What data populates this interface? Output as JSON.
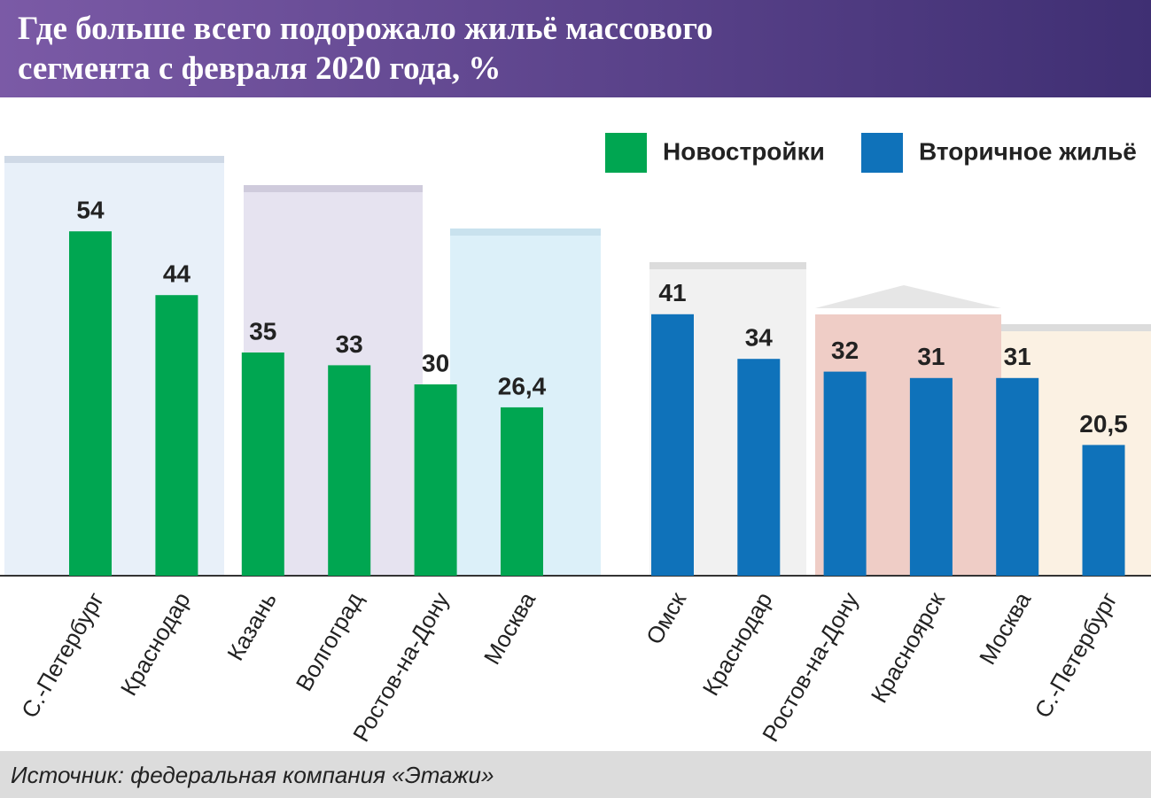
{
  "chart_data": {
    "type": "bar",
    "title": "Где больше всего подорожало жильё массового сегмента с февраля 2020 года, %",
    "source": "Источник: федеральная компания «Этажи»",
    "categories": [
      "С.-Петербург",
      "Краснодар",
      "Казань",
      "Волгоград",
      "Ростов-на-Дону",
      "Москва",
      "Омск",
      "Краснодар",
      "Ростов-на-Дону",
      "Красноярск",
      "Москва",
      "С.-Петербург"
    ],
    "series": [
      {
        "name": "Новостройки",
        "color": "#00a651",
        "values": [
          54,
          44,
          35,
          33,
          30,
          26.4,
          null,
          null,
          null,
          null,
          null,
          null
        ],
        "value_labels": [
          "54",
          "44",
          "35",
          "33",
          "30",
          "26,4",
          null,
          null,
          null,
          null,
          null,
          null
        ]
      },
      {
        "name": "Вторичное жильё",
        "color": "#0f72ba",
        "values": [
          null,
          null,
          null,
          null,
          null,
          null,
          41,
          34,
          32,
          31,
          31,
          20.5
        ],
        "value_labels": [
          null,
          null,
          null,
          null,
          null,
          null,
          "41",
          "34",
          "32",
          "31",
          "31",
          "20,5"
        ]
      }
    ],
    "legend": "top-right"
  }
}
